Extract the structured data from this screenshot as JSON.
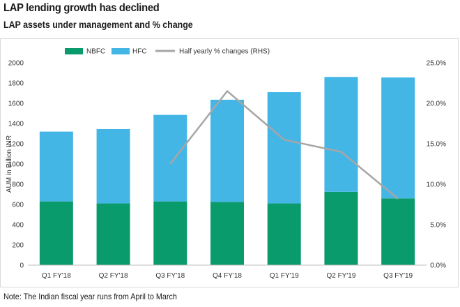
{
  "title": "LAP lending growth has declined",
  "subtitle": "LAP assets under management and % change",
  "note": "Note: The Indian fiscal year runs from April to March",
  "chart_data": {
    "type": "bar",
    "stacked": true,
    "categories": [
      "Q1 FY'18",
      "Q2 FY'18",
      "Q3 FY'18",
      "Q4 FY'18",
      "Q1 FY'19",
      "Q2 FY'19",
      "Q3 FY'19"
    ],
    "series": [
      {
        "name": "NBFC",
        "values": [
          630,
          610,
          630,
          625,
          610,
          725,
          660
        ],
        "color": "#0a9b6c"
      },
      {
        "name": "HFC",
        "values": [
          690,
          735,
          855,
          1010,
          1100,
          1135,
          1195
        ],
        "color": "#44b6e6"
      }
    ],
    "line_series": {
      "name": "Half yearly % changes (RHS)",
      "values": [
        null,
        null,
        12.5,
        21.5,
        15.5,
        14.0,
        8.2
      ],
      "color": "#a6a6a6",
      "axis": "right"
    },
    "ylabel": "AUM in Billion INR",
    "ylim": [
      0,
      2000
    ],
    "yticks": [
      "0",
      "200",
      "400",
      "600",
      "800",
      "1000",
      "1200",
      "1400",
      "1600",
      "1800",
      "2000"
    ],
    "y2lim": [
      0,
      25
    ],
    "y2ticks": [
      "0.0%",
      "5.0%",
      "10.0%",
      "15.0%",
      "20.0%",
      "25.0%"
    ],
    "legend_position": "top",
    "grid": false
  }
}
